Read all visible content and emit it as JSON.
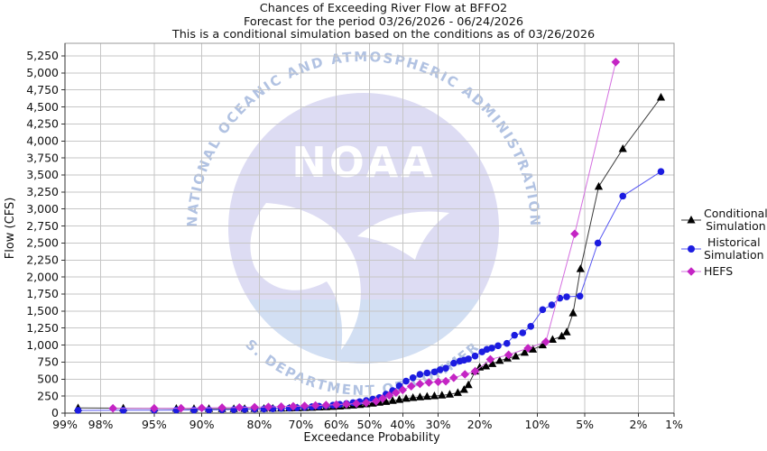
{
  "title": {
    "line1": "Chances of Exceeding River Flow at BFFO2",
    "line2": "Forecast for the period 03/26/2026 - 06/24/2026",
    "line3": "This is a conditional simulation based on the conditions as of 03/26/2026"
  },
  "watermark": {
    "acronym": "NOAA",
    "ring_top_text": "NATIONAL OCEANIC AND ATMOSPHERIC ADMINISTRATION",
    "ring_bottom_text": "U.S. DEPARTMENT OF COMMERCE"
  },
  "legend": {
    "entries": [
      {
        "line1": "Conditional",
        "line2": "Simulation"
      },
      {
        "line1": "Historical",
        "line2": "Simulation"
      },
      {
        "line1": "HEFS",
        "line2": ""
      }
    ]
  },
  "chart_data": {
    "type": "line",
    "title": "Chances of Exceeding River Flow at BFFO2",
    "xlabel": "Exceedance Probability",
    "ylabel": "Flow (CFS)",
    "x_scale": "probit",
    "x_axis_direction": "decreasing",
    "x_ticks_percent": [
      99,
      98,
      95,
      90,
      80,
      70,
      60,
      50,
      40,
      30,
      20,
      10,
      5,
      2,
      1
    ],
    "y_min": 0,
    "y_max": 5250,
    "y_step": 250,
    "grid": true,
    "grid_color": "#c6c6c6",
    "legend_position": "right",
    "series": [
      {
        "name": "Conditional Simulation",
        "marker": "triangle",
        "color": "#000000",
        "line_color": "#3a3a3a",
        "points": [
          [
            98.7,
            75
          ],
          [
            97,
            72
          ],
          [
            95,
            70
          ],
          [
            93,
            67
          ],
          [
            91,
            65
          ],
          [
            89,
            64
          ],
          [
            87,
            63
          ],
          [
            85,
            63
          ],
          [
            83,
            64
          ],
          [
            81,
            65
          ],
          [
            79,
            66
          ],
          [
            77,
            68
          ],
          [
            75,
            70
          ],
          [
            73,
            72
          ],
          [
            71,
            75
          ],
          [
            69,
            78
          ],
          [
            67,
            82
          ],
          [
            65,
            86
          ],
          [
            63,
            90
          ],
          [
            61,
            95
          ],
          [
            59,
            100
          ],
          [
            57,
            107
          ],
          [
            55,
            115
          ],
          [
            53,
            123
          ],
          [
            51,
            133
          ],
          [
            49,
            143
          ],
          [
            47,
            155
          ],
          [
            45,
            168
          ],
          [
            43,
            182
          ],
          [
            41,
            198
          ],
          [
            39,
            214
          ],
          [
            37,
            225
          ],
          [
            35,
            235
          ],
          [
            33,
            243
          ],
          [
            31,
            252
          ],
          [
            29,
            262
          ],
          [
            27,
            275
          ],
          [
            25,
            300
          ],
          [
            23.5,
            345
          ],
          [
            22.5,
            415
          ],
          [
            21,
            615
          ],
          [
            20,
            672
          ],
          [
            18.7,
            690
          ],
          [
            17.4,
            725
          ],
          [
            16,
            770
          ],
          [
            14.6,
            805
          ],
          [
            13.2,
            835
          ],
          [
            11.8,
            890
          ],
          [
            10.6,
            937
          ],
          [
            9.3,
            1000
          ],
          [
            8.1,
            1080
          ],
          [
            7.1,
            1130
          ],
          [
            6.6,
            1190
          ],
          [
            6,
            1470
          ],
          [
            5.35,
            2120
          ],
          [
            4,
            3330
          ],
          [
            2.65,
            3885
          ],
          [
            1.3,
            4640
          ]
        ]
      },
      {
        "name": "Historical Simulation",
        "marker": "circle",
        "color": "#1c1ce0",
        "line_color": "#5656f2",
        "points": [
          [
            98.7,
            40
          ],
          [
            97,
            42
          ],
          [
            95,
            44
          ],
          [
            93,
            45
          ],
          [
            91,
            46
          ],
          [
            89,
            48
          ],
          [
            87,
            50
          ],
          [
            85,
            52
          ],
          [
            83,
            55
          ],
          [
            81,
            58
          ],
          [
            79,
            61
          ],
          [
            77,
            64
          ],
          [
            75,
            68
          ],
          [
            73,
            73
          ],
          [
            71,
            79
          ],
          [
            69,
            86
          ],
          [
            67,
            93
          ],
          [
            65,
            100
          ],
          [
            63,
            108
          ],
          [
            61,
            117
          ],
          [
            59,
            128
          ],
          [
            57,
            140
          ],
          [
            55,
            153
          ],
          [
            53,
            168
          ],
          [
            51,
            185
          ],
          [
            49,
            205
          ],
          [
            47,
            228
          ],
          [
            45,
            278
          ],
          [
            43,
            330
          ],
          [
            41,
            400
          ],
          [
            39,
            470
          ],
          [
            37,
            520
          ],
          [
            35,
            570
          ],
          [
            33,
            590
          ],
          [
            31,
            605
          ],
          [
            29.5,
            637
          ],
          [
            28,
            660
          ],
          [
            26,
            733
          ],
          [
            24.5,
            765
          ],
          [
            23.5,
            778
          ],
          [
            22.5,
            796
          ],
          [
            21,
            840
          ],
          [
            19.5,
            900
          ],
          [
            18.5,
            937
          ],
          [
            17.5,
            955
          ],
          [
            16.3,
            990
          ],
          [
            14.7,
            1025
          ],
          [
            13.4,
            1145
          ],
          [
            12.1,
            1180
          ],
          [
            10.9,
            1275
          ],
          [
            9.3,
            1520
          ],
          [
            8.2,
            1590
          ],
          [
            7.3,
            1690
          ],
          [
            6.6,
            1710
          ],
          [
            5.4,
            1720
          ],
          [
            4.05,
            2500
          ],
          [
            2.65,
            3190
          ],
          [
            1.3,
            3550
          ]
        ]
      },
      {
        "name": "HEFS",
        "marker": "diamond",
        "color": "#c424c4",
        "line_color": "#d46fe0",
        "points": [
          [
            97.5,
            70
          ],
          [
            95,
            70
          ],
          [
            92.5,
            72
          ],
          [
            90,
            76
          ],
          [
            87,
            80
          ],
          [
            84,
            83
          ],
          [
            81,
            87
          ],
          [
            78,
            91
          ],
          [
            75,
            95
          ],
          [
            72,
            100
          ],
          [
            69,
            106
          ],
          [
            66,
            112
          ],
          [
            63,
            118
          ],
          [
            60,
            124
          ],
          [
            57,
            131
          ],
          [
            54,
            140
          ],
          [
            51,
            152
          ],
          [
            48,
            175
          ],
          [
            46,
            215
          ],
          [
            44,
            260
          ],
          [
            42,
            300
          ],
          [
            40,
            340
          ],
          [
            37.5,
            395
          ],
          [
            35,
            430
          ],
          [
            32.5,
            450
          ],
          [
            30,
            460
          ],
          [
            28,
            468
          ],
          [
            26,
            520
          ],
          [
            23.3,
            570
          ],
          [
            21,
            614
          ],
          [
            17.8,
            790
          ],
          [
            14.4,
            857
          ],
          [
            11.3,
            954
          ],
          [
            8.9,
            1048
          ],
          [
            5.85,
            2635
          ],
          [
            3,
            5160
          ]
        ]
      }
    ]
  }
}
